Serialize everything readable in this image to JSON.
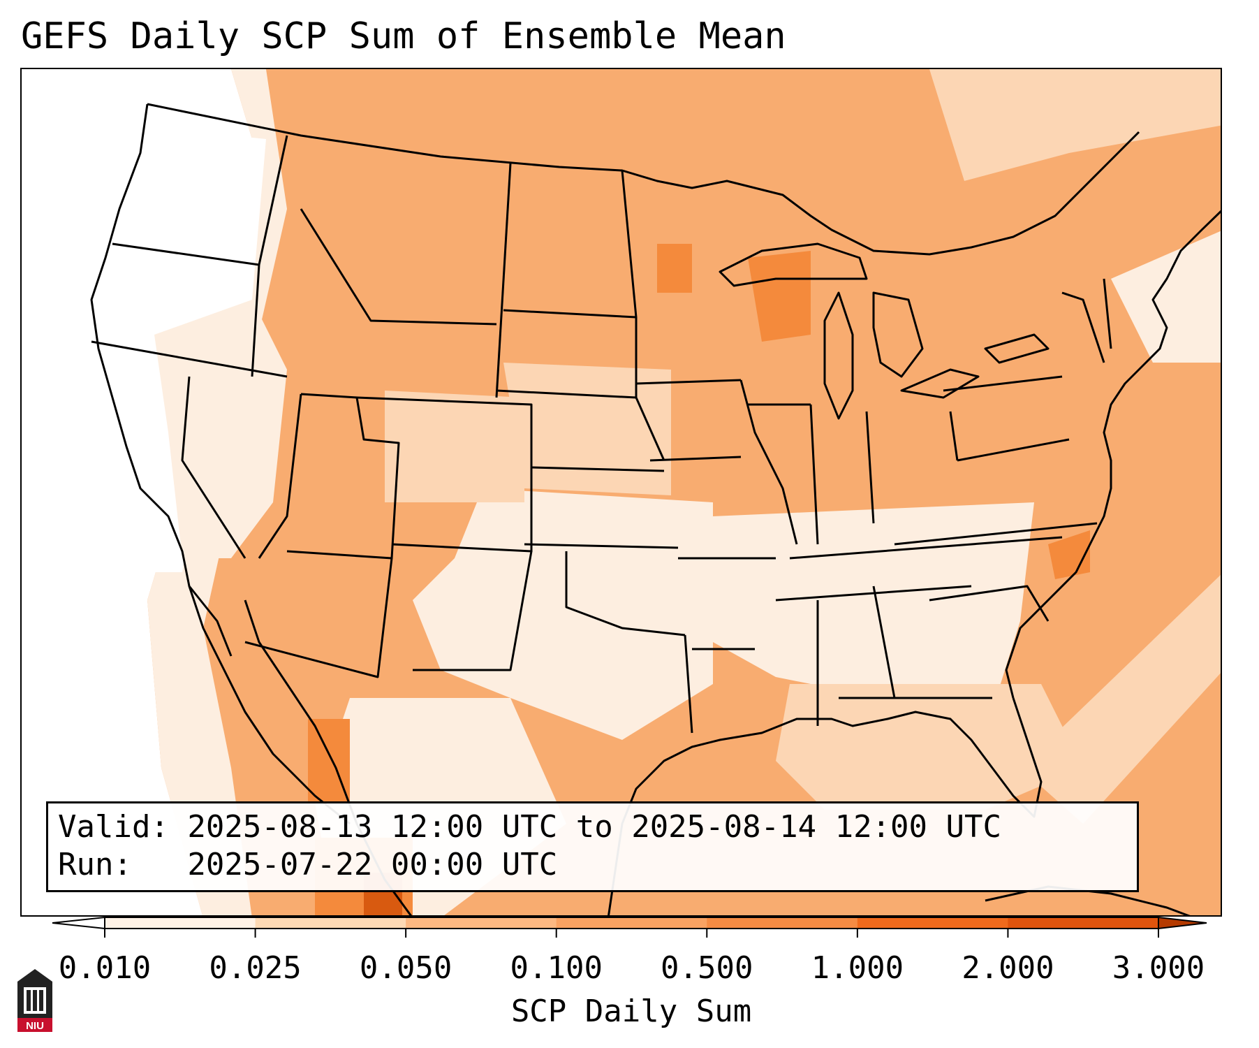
{
  "title": "GEFS Daily SCP Sum of Ensemble Mean",
  "info": {
    "valid": "Valid: 2025-08-13 12:00 UTC to 2025-08-14 12:00 UTC",
    "run": "Run:   2025-07-22 00:00 UTC"
  },
  "colorbar": {
    "label": "SCP Daily Sum",
    "ticks": [
      "0.010",
      "0.025",
      "0.050",
      "0.100",
      "0.500",
      "1.000",
      "2.000",
      "3.000"
    ],
    "colors": [
      "#fff2e6",
      "#fdd9b4",
      "#fcb882",
      "#f9a262",
      "#f58b43",
      "#f06a1c",
      "#e0540d",
      "#c44304"
    ],
    "extend": "both"
  },
  "logo": {
    "text": "NIU",
    "icon": "university-tower-icon"
  },
  "palette": {
    "very_light": "#fdeee0",
    "light": "#fcd6b4",
    "medium": "#f8ac70",
    "dark": "#f48a3c",
    "darkest": "#d85a10"
  }
}
